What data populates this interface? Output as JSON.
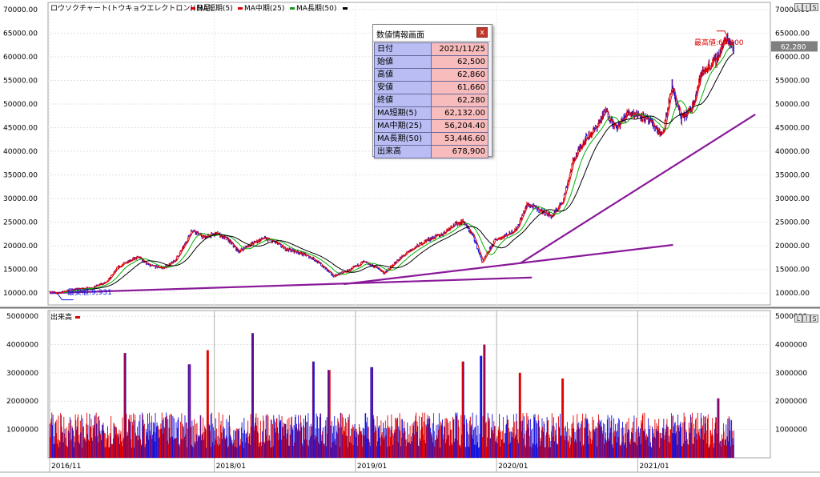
{
  "header": {
    "title": "ロウソクチャート(トウキョウエレクトロン)(日足)",
    "legend": [
      {
        "label": "MA短期(5)",
        "color": "#e00000"
      },
      {
        "label": "MA中期(25)",
        "color": "#e00000"
      },
      {
        "label": "MA長期(50)",
        "color": "#000000"
      }
    ],
    "window_buttons": [
      "L",
      "I",
      "S"
    ]
  },
  "volume_panel": {
    "title": "出来高",
    "window_buttons": [
      "L",
      "I",
      "S"
    ]
  },
  "info_panel": {
    "title": "数値情報画面",
    "close_label": "x",
    "rows": [
      {
        "label": "日付",
        "value": "2021/11/25"
      },
      {
        "label": "始値",
        "value": "62,500"
      },
      {
        "label": "高値",
        "value": "62,860"
      },
      {
        "label": "安値",
        "value": "61,660"
      },
      {
        "label": "終値",
        "value": "62,280"
      },
      {
        "label": "MA短期(5)",
        "value": "62,132.00"
      },
      {
        "label": "MA中期(25)",
        "value": "56,204.40"
      },
      {
        "label": "MA長期(50)",
        "value": "53,446.60"
      },
      {
        "label": "出来高",
        "value": "678,900"
      }
    ]
  },
  "colors": {
    "up": "#e00000",
    "down": "#1010e0",
    "ma_short": "#e00000",
    "ma_mid": "#00b000",
    "ma_long": "#000000",
    "trendline": "#8a1a9a",
    "annotation_high": "#e00000",
    "annotation_low": "#1010e0",
    "current_price_bg": "#808080"
  },
  "chart_data": [
    {
      "type": "candlestick",
      "price_ticks_left": [
        "70000.00",
        "65000.00",
        "60000.00",
        "55000.00",
        "50000.00",
        "45000.00",
        "40000.00",
        "35000.00",
        "30000.00",
        "25000.00",
        "20000.00",
        "15000.00",
        "10000.00"
      ],
      "price_ticks_right": [
        "70000.00",
        "65000.00",
        "60000.00",
        "55000.00",
        "50000.00",
        "45000.00",
        "40000.00",
        "35000.00",
        "30000.00",
        "25000.00",
        "20000.00",
        "15000.00",
        "10000.00"
      ],
      "ylim": [
        7500,
        71500
      ],
      "x_labels": [
        "2016/11",
        "2018/01",
        "2019/01",
        "2020/01",
        "2021/01"
      ],
      "annotations": {
        "high": {
          "label": "最高値:64,100",
          "value": 64100
        },
        "low": {
          "label": "最安値:9,931",
          "value": 9931
        },
        "current": {
          "label": "62,280",
          "value": 62280
        }
      },
      "price_path": [
        {
          "t": 0.0,
          "p": 10400
        },
        {
          "t": 0.01,
          "p": 9931
        },
        {
          "t": 0.03,
          "p": 10700
        },
        {
          "t": 0.06,
          "p": 11200
        },
        {
          "t": 0.08,
          "p": 12300
        },
        {
          "t": 0.095,
          "p": 15300
        },
        {
          "t": 0.11,
          "p": 16800
        },
        {
          "t": 0.125,
          "p": 17600
        },
        {
          "t": 0.14,
          "p": 15800
        },
        {
          "t": 0.16,
          "p": 15300
        },
        {
          "t": 0.175,
          "p": 16700
        },
        {
          "t": 0.188,
          "p": 19800
        },
        {
          "t": 0.2,
          "p": 23500
        },
        {
          "t": 0.215,
          "p": 21800
        },
        {
          "t": 0.235,
          "p": 22600
        },
        {
          "t": 0.25,
          "p": 21300
        },
        {
          "t": 0.265,
          "p": 18800
        },
        {
          "t": 0.28,
          "p": 20200
        },
        {
          "t": 0.3,
          "p": 21600
        },
        {
          "t": 0.315,
          "p": 20900
        },
        {
          "t": 0.33,
          "p": 19400
        },
        {
          "t": 0.35,
          "p": 18600
        },
        {
          "t": 0.37,
          "p": 17300
        },
        {
          "t": 0.385,
          "p": 15400
        },
        {
          "t": 0.398,
          "p": 13600
        },
        {
          "t": 0.42,
          "p": 14800
        },
        {
          "t": 0.44,
          "p": 16600
        },
        {
          "t": 0.46,
          "p": 15300
        },
        {
          "t": 0.47,
          "p": 14200
        },
        {
          "t": 0.49,
          "p": 17200
        },
        {
          "t": 0.51,
          "p": 19400
        },
        {
          "t": 0.53,
          "p": 21300
        },
        {
          "t": 0.55,
          "p": 22400
        },
        {
          "t": 0.565,
          "p": 24300
        },
        {
          "t": 0.58,
          "p": 25200
        },
        {
          "t": 0.595,
          "p": 21800
        },
        {
          "t": 0.607,
          "p": 16500
        },
        {
          "t": 0.625,
          "p": 21300
        },
        {
          "t": 0.64,
          "p": 22200
        },
        {
          "t": 0.655,
          "p": 23600
        },
        {
          "t": 0.67,
          "p": 28800
        },
        {
          "t": 0.69,
          "p": 27400
        },
        {
          "t": 0.705,
          "p": 26200
        },
        {
          "t": 0.72,
          "p": 29600
        },
        {
          "t": 0.735,
          "p": 38200
        },
        {
          "t": 0.75,
          "p": 42400
        },
        {
          "t": 0.765,
          "p": 44600
        },
        {
          "t": 0.78,
          "p": 48600
        },
        {
          "t": 0.795,
          "p": 44800
        },
        {
          "t": 0.812,
          "p": 48300
        },
        {
          "t": 0.83,
          "p": 47600
        },
        {
          "t": 0.845,
          "p": 45800
        },
        {
          "t": 0.86,
          "p": 43200
        },
        {
          "t": 0.873,
          "p": 53800
        },
        {
          "t": 0.886,
          "p": 46800
        },
        {
          "t": 0.9,
          "p": 48800
        },
        {
          "t": 0.914,
          "p": 56200
        },
        {
          "t": 0.923,
          "p": 57800
        },
        {
          "t": 0.935,
          "p": 59300
        },
        {
          "t": 0.944,
          "p": 62300
        },
        {
          "t": 0.95,
          "p": 64100
        },
        {
          "t": 0.96,
          "p": 62280
        }
      ],
      "trendlines": [
        {
          "name": "support-1",
          "from": {
            "date": "2016/11",
            "value": 10000
          },
          "to": {
            "date": "2020/04",
            "value": 13300
          }
        },
        {
          "name": "support-2",
          "from": {
            "date": "2018/12",
            "value": 11900
          },
          "to": {
            "date": "2021/04",
            "value": 20200
          }
        },
        {
          "name": "support-3",
          "from": {
            "date": "2020/03",
            "value": 16300
          },
          "to": {
            "date": "2021/11",
            "value": 47800
          }
        }
      ]
    },
    {
      "type": "bar",
      "title": "出来高",
      "ticks_left": [
        "5000000",
        "4000000",
        "3000000",
        "2000000",
        "1000000"
      ],
      "ticks_right": [
        "5000000",
        "4000000",
        "3000000",
        "2000000",
        "1000000"
      ],
      "ylim": [
        0,
        5200000
      ],
      "typical_value": 1000000,
      "spikes": [
        {
          "t": 0.106,
          "value": 3700000
        },
        {
          "t": 0.196,
          "value": 3300000
        },
        {
          "t": 0.222,
          "value": 3800000
        },
        {
          "t": 0.285,
          "value": 4400000
        },
        {
          "t": 0.37,
          "value": 3400000
        },
        {
          "t": 0.392,
          "value": 3100000
        },
        {
          "t": 0.452,
          "value": 3200000
        },
        {
          "t": 0.58,
          "value": 3400000
        },
        {
          "t": 0.605,
          "value": 3600000
        },
        {
          "t": 0.61,
          "value": 4000000
        },
        {
          "t": 0.66,
          "value": 3000000
        },
        {
          "t": 0.72,
          "value": 2800000
        },
        {
          "t": 0.938,
          "value": 2100000
        }
      ]
    }
  ]
}
